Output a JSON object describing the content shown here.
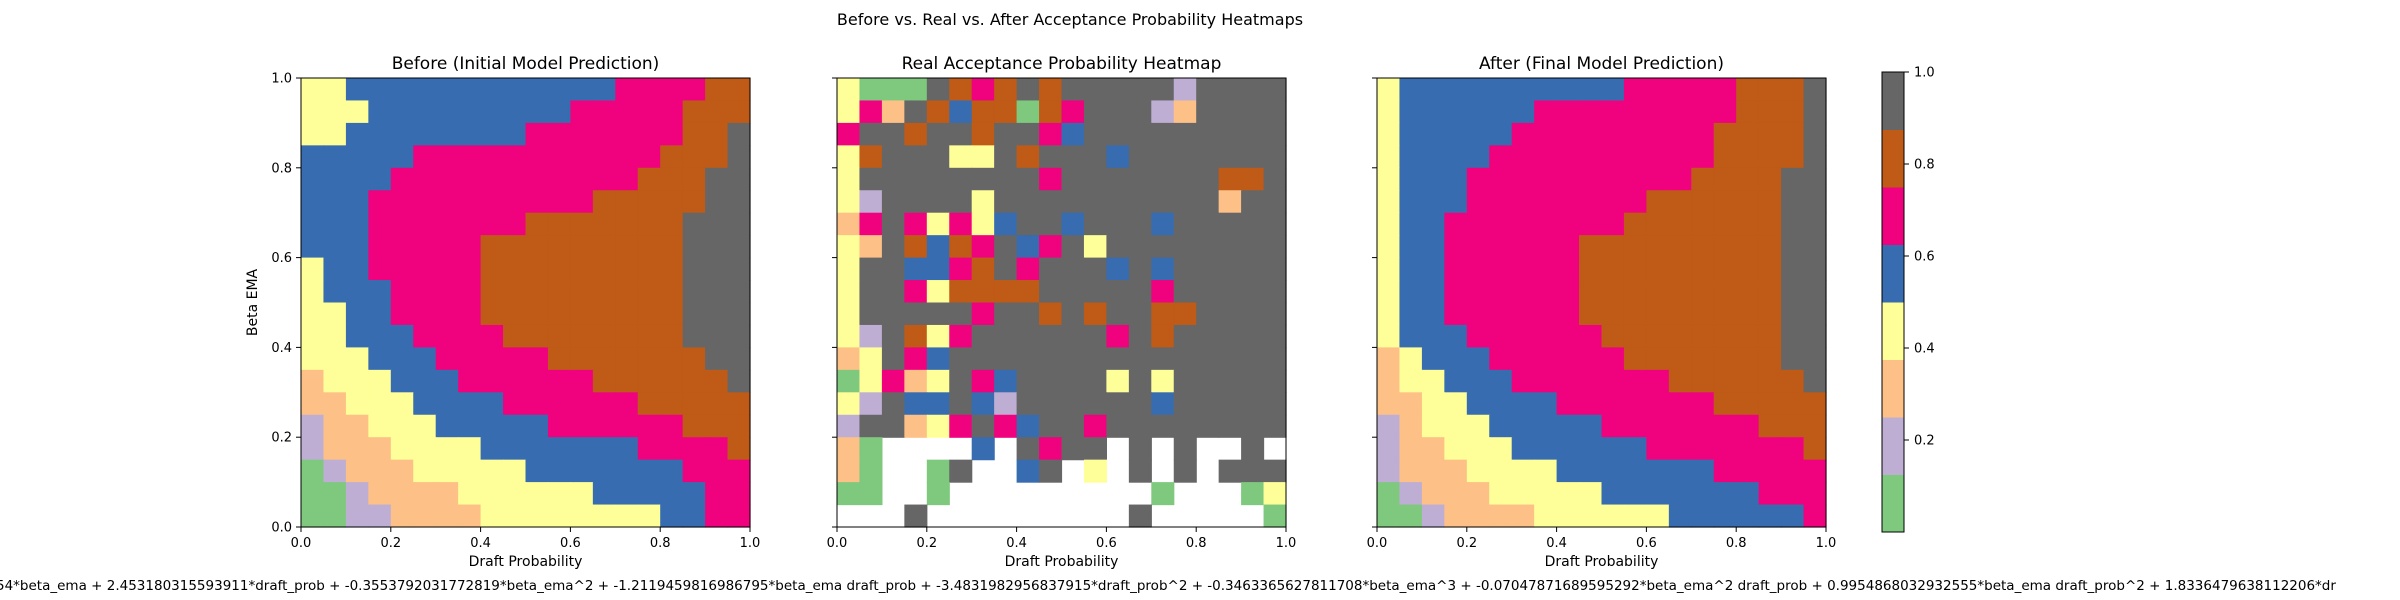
{
  "figure": {
    "suptitle": "Before vs. Real vs. After Acceptance Probability Heatmaps",
    "formula": "54*beta_ema + 2.453180315593911*draft_prob + -0.3553792031772819*beta_ema^2 + -1.2119459816986795*beta_ema draft_prob + -3.4831982956837915*draft_prob^2 + -0.3463365627811708*beta_ema^3 + -0.07047871689595292*beta_ema^2 draft_prob + 0.9954868032932555*beta_ema draft_prob^2 + 1.8336479638112206*dr"
  },
  "colorbar": {
    "colors": [
      "#7fc97f",
      "#beaed4",
      "#fdc086",
      "#ffff99",
      "#386cb0",
      "#f0027f",
      "#bf5b17",
      "#666666"
    ],
    "bounds": [
      0.0,
      0.125,
      0.25,
      0.375,
      0.5,
      0.625,
      0.75,
      0.875,
      1.0
    ],
    "ticks": [
      0.2,
      0.4,
      0.6,
      0.8,
      1.0
    ],
    "tick_labels": [
      "0.2",
      "0.4",
      "0.6",
      "0.8",
      "1.0"
    ]
  },
  "chart_data": [
    {
      "type": "heatmap",
      "title": "Before (Initial Model Prediction)",
      "xlabel": "Draft Probability",
      "ylabel": "Beta EMA",
      "xlim": [
        0,
        1
      ],
      "ylim": [
        0,
        1
      ],
      "xticks": [
        "0.0",
        "0.2",
        "0.4",
        "0.6",
        "0.8",
        "1.0"
      ],
      "yticks": [
        "0.0",
        "0.2",
        "0.4",
        "0.6",
        "0.8",
        "1.0"
      ],
      "grid_size": 20,
      "color_classes": "index into colorbar.colors (0..7), rows listed from top (beta_ema 0.95) to bottom (beta_ema 0.025)",
      "rows": [
        "33444444444444555566",
        "33344444444455555666",
        "33444444445555555667",
        "44444555555555556667",
        "44445555555555566677",
        "44455555555556666677",
        "44455555556666666777",
        "44455555666666666777",
        "34455555666666666777",
        "34445555666666666777",
        "33445555666666666777",
        "33444555566666666777",
        "33344455555666666677",
        "23334445555556666667",
        "22333444455555566666",
        "12233344444555555666",
        "12223333444444455556",
        "01222333334444444555",
        "00122223333334444455",
        "00112222333333334455"
      ]
    },
    {
      "type": "heatmap",
      "title": "Real Acceptance Probability Heatmap",
      "xlabel": "Draft Probability",
      "ylabel": "",
      "xlim": [
        0,
        1
      ],
      "ylim": [
        0,
        1
      ],
      "xticks": [
        "0.0",
        "0.2",
        "0.4",
        "0.6",
        "0.8",
        "1.0"
      ],
      "yticks": [
        "",
        "",
        "",
        "",
        "",
        ""
      ],
      "grid_size": 20,
      "color_classes": "index into colorbar.colors (0..7), '.' = no data (white), rows listed from top to bottom",
      "rows": [
        "30007656767777717777",
        "35276466065777127777",
        "57767767754777777777",
        "36777337677747777777",
        "37777777757777777667",
        "31777737777777777277",
        "25753534774777477777",
        "32764657457377777777",
        "37744567577747477777",
        "37753666677777577777",
        "37777757767677667777",
        "31763577777757677777",
        "23754777777777777777",
        "03523754777737377777",
        "31744741777777477777",
        "17723575477577777777",
        "20....4.7577.7.7..7.",
        "20..07..47.3.7.7.777",
        "00..0.........0...03",
        "...7.........7.....0"
      ]
    },
    {
      "type": "heatmap",
      "title": "After (Final Model Prediction)",
      "xlabel": "Draft Probability",
      "ylabel": "",
      "xlim": [
        0,
        1
      ],
      "ylim": [
        0,
        1
      ],
      "xticks": [
        "0.0",
        "0.2",
        "0.4",
        "0.6",
        "0.8",
        "1.0"
      ],
      "yticks": [
        "",
        "",
        "",
        "",
        "",
        ""
      ],
      "grid_size": 20,
      "color_classes": "index into colorbar.colors (0..7), rows listed from top to bottom",
      "rows": [
        "34444444444555556667",
        "34444445555555556667",
        "34444455555555566667",
        "34444555555555566667",
        "34445555555555666677",
        "34445555555566666677",
        "34455555555666666677",
        "34455555566666666677",
        "34455555566666666677",
        "34455555566666666677",
        "34455555566666666677",
        "34445555556666666677",
        "23444555555666666677",
        "23344455555556666667",
        "22334444555555566666",
        "12333444445555555666",
        "12233344444455555556",
        "12223333444444455555",
        "01222333334444444555",
        "00122223333334444445"
      ]
    }
  ]
}
